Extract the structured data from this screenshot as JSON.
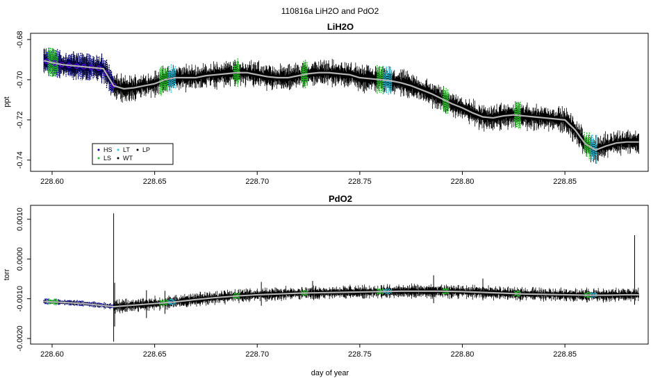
{
  "figure": {
    "title": "110816a   LiH2O and PdO2",
    "xlabel": "day of year"
  },
  "colors": {
    "HS": "#00008b",
    "LS": "#1fbf1f",
    "LT": "#1ec8e6",
    "WT": "#000000",
    "LP": "#000000",
    "smooth": "#b4b4b4",
    "HS_circle": "#6a00ff"
  },
  "legend": {
    "entries": [
      {
        "key": "HS",
        "label": "HS"
      },
      {
        "key": "LS",
        "label": "LS"
      },
      {
        "key": "LT",
        "label": "LT"
      },
      {
        "key": "WT",
        "label": "WT"
      },
      {
        "key": "LP",
        "label": "LP"
      }
    ]
  },
  "chart_data": [
    {
      "type": "line",
      "title": "LiH2O",
      "xlabel": "",
      "ylabel": "ppt",
      "xlim": [
        228.5895,
        228.8906
      ],
      "ylim": [
        -0.7456,
        -0.6769
      ],
      "xticks": [
        228.6,
        228.65,
        228.7,
        228.75,
        228.8,
        228.85
      ],
      "xtick_labels": [
        "228.60",
        "228.65",
        "228.70",
        "228.75",
        "228.80",
        "228.85"
      ],
      "yticks": [
        -0.68,
        -0.7,
        -0.72,
        -0.74
      ],
      "ytick_labels": [
        "-0.68",
        "-0.70",
        "-0.72",
        "-0.74"
      ],
      "legend_position": "bottom-left",
      "series": [
        {
          "name": "smoothed",
          "x": [
            228.596,
            228.6,
            228.605,
            228.61,
            228.615,
            228.62,
            228.625,
            228.63,
            228.635,
            228.64,
            228.645,
            228.65,
            228.655,
            228.66,
            228.665,
            228.67,
            228.675,
            228.68,
            228.685,
            228.69,
            228.695,
            228.7,
            228.705,
            228.71,
            228.715,
            228.72,
            228.725,
            228.73,
            228.735,
            228.74,
            228.745,
            228.75,
            228.755,
            228.76,
            228.765,
            228.77,
            228.775,
            228.78,
            228.785,
            228.79,
            228.795,
            228.8,
            228.805,
            228.81,
            228.815,
            228.82,
            228.825,
            228.83,
            228.835,
            228.84,
            228.845,
            228.85,
            228.855,
            228.86,
            228.865,
            228.87,
            228.875,
            228.88,
            228.886
          ],
          "y": [
            -0.6905,
            -0.6915,
            -0.6925,
            -0.693,
            -0.6935,
            -0.694,
            -0.6945,
            -0.703,
            -0.7045,
            -0.704,
            -0.703,
            -0.702,
            -0.7,
            -0.699,
            -0.699,
            -0.699,
            -0.698,
            -0.6975,
            -0.697,
            -0.6965,
            -0.6965,
            -0.6975,
            -0.6985,
            -0.699,
            -0.699,
            -0.698,
            -0.697,
            -0.6965,
            -0.6965,
            -0.697,
            -0.6975,
            -0.699,
            -0.6995,
            -0.7,
            -0.7005,
            -0.7015,
            -0.703,
            -0.705,
            -0.707,
            -0.7095,
            -0.712,
            -0.714,
            -0.7165,
            -0.7185,
            -0.719,
            -0.718,
            -0.7175,
            -0.718,
            -0.7185,
            -0.719,
            -0.7195,
            -0.72,
            -0.725,
            -0.732,
            -0.735,
            -0.733,
            -0.7315,
            -0.731,
            -0.731
          ]
        }
      ],
      "markers": [
        {
          "key": "HS",
          "ranges": [
            [
              228.596,
              228.63
            ]
          ]
        },
        {
          "key": "LS",
          "ranges": [
            [
              228.598,
              228.603
            ],
            [
              228.6525,
              228.6565
            ],
            [
              228.6885,
              228.6915
            ],
            [
              228.7215,
              228.7245
            ],
            [
              228.7585,
              228.7615
            ],
            [
              228.7905,
              228.7935
            ],
            [
              228.8255,
              228.8285
            ],
            [
              228.8595,
              228.8625
            ]
          ]
        },
        {
          "key": "LT",
          "ranges": [
            [
              228.6565,
              228.66
            ],
            [
              228.7615,
              228.7655
            ],
            [
              228.8625,
              228.8655
            ]
          ]
        }
      ]
    },
    {
      "type": "line",
      "title": "PdO2",
      "xlabel": "day of year",
      "ylabel": "torr",
      "xlim": [
        228.5895,
        228.8906
      ],
      "ylim": [
        -0.00214,
        0.00135
      ],
      "xticks": [
        228.6,
        228.65,
        228.7,
        228.75,
        228.8,
        228.85
      ],
      "xtick_labels": [
        "228.60",
        "228.65",
        "228.70",
        "228.75",
        "228.80",
        "228.85"
      ],
      "yticks": [
        0.001,
        0.0,
        -0.001,
        -0.002
      ],
      "ytick_labels": [
        "0.0010",
        "0.0000",
        "-0.0010",
        "-0.0020"
      ],
      "series": [
        {
          "name": "smoothed",
          "x": [
            228.596,
            228.605,
            228.615,
            228.625,
            228.63,
            228.64,
            228.65,
            228.66,
            228.67,
            228.68,
            228.69,
            228.7,
            228.71,
            228.72,
            228.73,
            228.74,
            228.75,
            228.76,
            228.77,
            228.78,
            228.79,
            228.8,
            228.81,
            228.82,
            228.83,
            228.84,
            228.85,
            228.86,
            228.87,
            228.88,
            228.886
          ],
          "y": [
            -0.00107,
            -0.00109,
            -0.00112,
            -0.00117,
            -0.0012,
            -0.00116,
            -0.00112,
            -0.00108,
            -0.00102,
            -0.00097,
            -0.00093,
            -0.0009,
            -0.00088,
            -0.00086,
            -0.00085,
            -0.00084,
            -0.00083,
            -0.00082,
            -0.00081,
            -0.00081,
            -0.00081,
            -0.00082,
            -0.00084,
            -0.00086,
            -0.00088,
            -0.00089,
            -0.0009,
            -0.00091,
            -0.00091,
            -0.0009,
            -0.0009
          ]
        }
      ],
      "markers": [
        {
          "key": "HS",
          "ranges": [
            [
              228.596,
              228.63
            ]
          ]
        },
        {
          "key": "LS",
          "ranges": [
            [
              228.598,
              228.603
            ],
            [
              228.6525,
              228.6565
            ],
            [
              228.6885,
              228.6915
            ],
            [
              228.7215,
              228.7245
            ],
            [
              228.7585,
              228.7615
            ],
            [
              228.7905,
              228.7935
            ],
            [
              228.8255,
              228.8285
            ],
            [
              228.8595,
              228.8625
            ]
          ]
        },
        {
          "key": "LT",
          "ranges": [
            [
              228.6565,
              228.66
            ],
            [
              228.7615,
              228.7655
            ],
            [
              228.8625,
              228.8655
            ]
          ]
        }
      ]
    }
  ]
}
